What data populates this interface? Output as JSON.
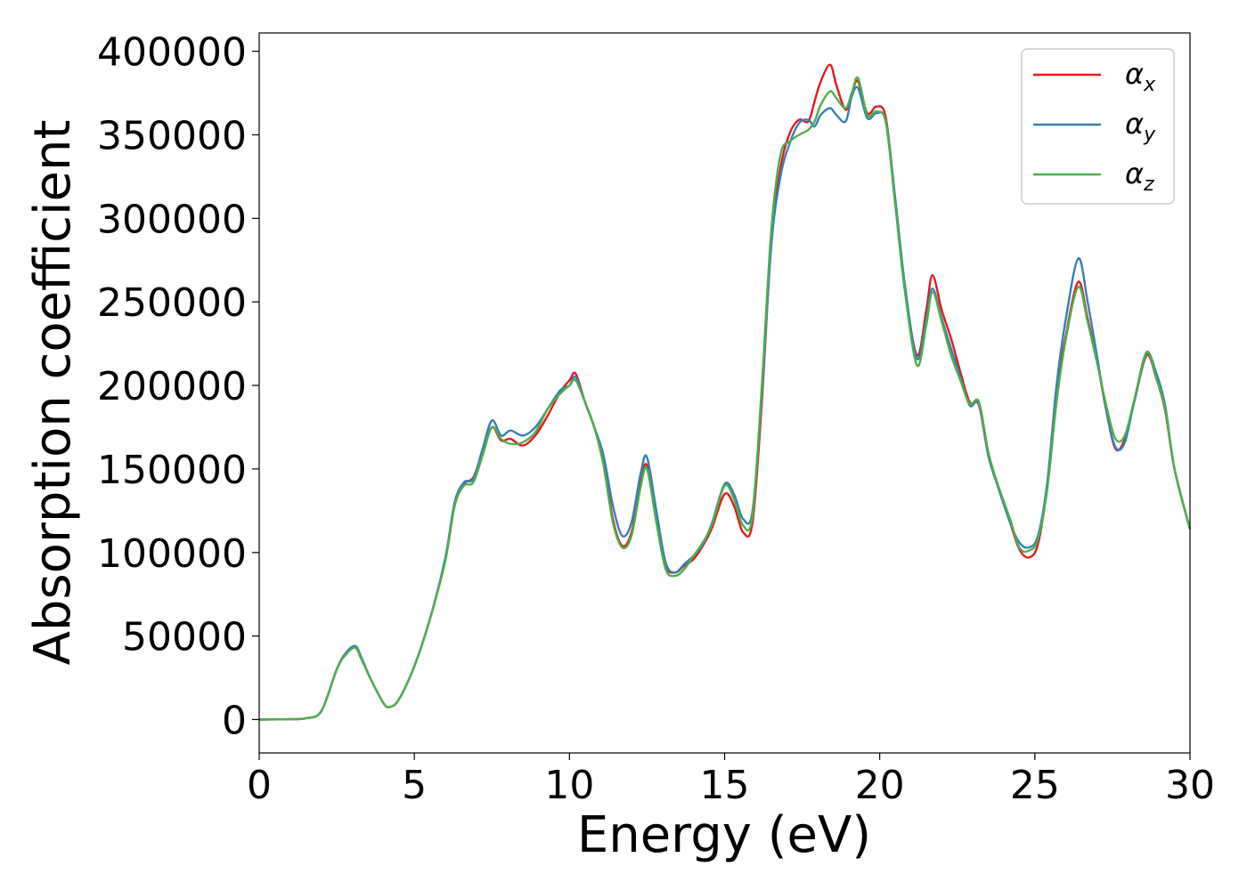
{
  "chart_data": {
    "type": "line",
    "title": "",
    "xlabel": "Energy (eV)",
    "ylabel": "Absorption coefficient",
    "xlim": [
      0,
      30
    ],
    "ylim": [
      -20000,
      411000
    ],
    "xticks": [
      0,
      5,
      10,
      15,
      20,
      25,
      30
    ],
    "xtick_labels": [
      "0",
      "5",
      "10",
      "15",
      "20",
      "25",
      "30"
    ],
    "yticks": [
      0,
      50000,
      100000,
      150000,
      200000,
      250000,
      300000,
      350000,
      400000
    ],
    "ytick_labels": [
      "0",
      "50000",
      "100000",
      "150000",
      "200000",
      "250000",
      "300000",
      "350000",
      "400000"
    ],
    "grid": false,
    "legend_position": "top-right",
    "series": [
      {
        "name": "αx",
        "symbol": "α",
        "subscript": "x",
        "color": "#e41a1c",
        "x": [
          0,
          1,
          1.5,
          2,
          2.5,
          2.8,
          3.1,
          3.3,
          3.6,
          4.0,
          4.2,
          4.5,
          5.0,
          5.5,
          6.0,
          6.3,
          6.6,
          6.9,
          7.2,
          7.5,
          7.8,
          8.1,
          8.5,
          8.9,
          9.3,
          9.7,
          10.0,
          10.2,
          10.5,
          10.8,
          11.1,
          11.4,
          11.7,
          12.0,
          12.3,
          12.5,
          12.8,
          13.1,
          13.4,
          13.7,
          14.0,
          14.3,
          14.6,
          15.0,
          15.3,
          15.6,
          15.9,
          16.2,
          16.5,
          16.8,
          17.1,
          17.4,
          17.7,
          17.9,
          18.1,
          18.4,
          18.6,
          18.9,
          19.1,
          19.3,
          19.6,
          19.9,
          20.2,
          20.5,
          20.8,
          21.2,
          21.5,
          21.7,
          22.0,
          22.3,
          22.6,
          22.9,
          23.2,
          23.5,
          23.8,
          24.2,
          24.5,
          24.8,
          25.1,
          25.4,
          25.7,
          26.0,
          26.4,
          26.7,
          27.0,
          27.3,
          27.6,
          27.9,
          28.2,
          28.6,
          28.9,
          29.2,
          29.5,
          30.0
        ],
        "y": [
          0,
          200,
          800,
          5000,
          30000,
          40000,
          43000,
          36000,
          24000,
          10000,
          7500,
          12000,
          32000,
          60000,
          96000,
          128000,
          141000,
          145000,
          160000,
          175000,
          167000,
          168000,
          164000,
          170000,
          182000,
          196000,
          203000,
          207000,
          190000,
          175000,
          155000,
          120000,
          104000,
          112000,
          142000,
          152000,
          120000,
          92000,
          88000,
          92000,
          96000,
          104000,
          115000,
          135000,
          128000,
          112000,
          118000,
          190000,
          285000,
          330000,
          351000,
          359000,
          358000,
          370000,
          382000,
          392000,
          380000,
          365000,
          375000,
          382000,
          363000,
          367000,
          360000,
          310000,
          260000,
          218000,
          245000,
          266000,
          245000,
          228000,
          208000,
          190000,
          188000,
          158000,
          140000,
          118000,
          102000,
          97000,
          105000,
          140000,
          195000,
          230000,
          262000,
          240000,
          215000,
          185000,
          162000,
          168000,
          190000,
          218000,
          205000,
          185000,
          150000,
          114000
        ]
      },
      {
        "name": "αy",
        "symbol": "α",
        "subscript": "y",
        "color": "#377eb8",
        "x": [
          0,
          1,
          1.5,
          2,
          2.5,
          2.8,
          3.1,
          3.3,
          3.6,
          4.0,
          4.2,
          4.5,
          5.0,
          5.5,
          6.0,
          6.3,
          6.6,
          6.9,
          7.2,
          7.5,
          7.8,
          8.1,
          8.5,
          8.9,
          9.3,
          9.7,
          10.0,
          10.2,
          10.5,
          10.8,
          11.1,
          11.4,
          11.7,
          12.0,
          12.3,
          12.5,
          12.8,
          13.1,
          13.4,
          13.7,
          14.0,
          14.3,
          14.6,
          15.0,
          15.3,
          15.6,
          15.9,
          16.2,
          16.5,
          16.8,
          17.1,
          17.4,
          17.7,
          17.9,
          18.1,
          18.4,
          18.6,
          18.9,
          19.1,
          19.3,
          19.6,
          19.9,
          20.2,
          20.5,
          20.8,
          21.2,
          21.5,
          21.7,
          22.0,
          22.3,
          22.6,
          22.9,
          23.2,
          23.5,
          23.8,
          24.2,
          24.5,
          24.8,
          25.1,
          25.4,
          25.7,
          26.0,
          26.4,
          26.7,
          27.0,
          27.3,
          27.6,
          27.9,
          28.2,
          28.6,
          28.9,
          29.2,
          29.5,
          30.0
        ],
        "y": [
          0,
          200,
          800,
          5000,
          30000,
          40000,
          44000,
          37000,
          24000,
          10000,
          7500,
          12000,
          32000,
          60000,
          97000,
          130000,
          142000,
          144000,
          162000,
          179000,
          170000,
          173000,
          170000,
          175000,
          186000,
          197000,
          200000,
          205000,
          190000,
          175000,
          158000,
          128000,
          110000,
          118000,
          148000,
          157000,
          125000,
          94000,
          88000,
          93000,
          98000,
          105000,
          118000,
          141000,
          135000,
          120000,
          125000,
          195000,
          283000,
          325000,
          345000,
          357000,
          359000,
          355000,
          362000,
          366000,
          362000,
          358000,
          373000,
          378000,
          360000,
          363000,
          358000,
          312000,
          262000,
          216000,
          240000,
          258000,
          240000,
          222000,
          205000,
          188000,
          189000,
          158000,
          140000,
          118000,
          106000,
          103000,
          110000,
          142000,
          200000,
          240000,
          276000,
          250000,
          218000,
          185000,
          163000,
          166000,
          190000,
          219000,
          208000,
          188000,
          150000,
          114000
        ]
      },
      {
        "name": "αz",
        "symbol": "α",
        "subscript": "z",
        "color": "#4daf4a",
        "x": [
          0,
          1,
          1.5,
          2,
          2.5,
          2.8,
          3.1,
          3.3,
          3.6,
          4.0,
          4.2,
          4.5,
          5.0,
          5.5,
          6.0,
          6.3,
          6.6,
          6.9,
          7.2,
          7.5,
          7.8,
          8.1,
          8.5,
          8.9,
          9.3,
          9.7,
          10.0,
          10.2,
          10.5,
          10.8,
          11.1,
          11.4,
          11.7,
          12.0,
          12.3,
          12.5,
          12.8,
          13.1,
          13.4,
          13.7,
          14.0,
          14.3,
          14.6,
          15.0,
          15.3,
          15.6,
          15.9,
          16.2,
          16.5,
          16.8,
          17.1,
          17.4,
          17.7,
          17.9,
          18.1,
          18.4,
          18.6,
          18.9,
          19.1,
          19.3,
          19.6,
          19.9,
          20.2,
          20.5,
          20.8,
          21.2,
          21.5,
          21.7,
          22.0,
          22.3,
          22.6,
          22.9,
          23.2,
          23.5,
          23.8,
          24.2,
          24.5,
          24.8,
          25.1,
          25.4,
          25.7,
          26.0,
          26.4,
          26.7,
          27.0,
          27.3,
          27.6,
          27.9,
          28.2,
          28.6,
          28.9,
          29.2,
          29.5,
          30.0
        ],
        "y": [
          0,
          200,
          800,
          5000,
          30000,
          39000,
          43000,
          36000,
          24000,
          10000,
          7500,
          12000,
          32000,
          60000,
          95000,
          128000,
          140000,
          142000,
          158000,
          175000,
          168000,
          165000,
          166000,
          172000,
          186000,
          195000,
          200000,
          203000,
          190000,
          175000,
          152000,
          118000,
          103000,
          110000,
          140000,
          150000,
          118000,
          90000,
          86000,
          90000,
          98000,
          106000,
          117000,
          140000,
          132000,
          116000,
          122000,
          200000,
          292000,
          338000,
          346000,
          350000,
          353000,
          358000,
          368000,
          376000,
          372000,
          366000,
          375000,
          384000,
          362000,
          364000,
          357000,
          308000,
          258000,
          212000,
          236000,
          256000,
          238000,
          218000,
          203000,
          189000,
          190000,
          160000,
          141000,
          120000,
          103000,
          101000,
          108000,
          138000,
          190000,
          228000,
          259000,
          238000,
          214000,
          188000,
          168000,
          170000,
          191000,
          220000,
          205000,
          186000,
          150000,
          114000
        ]
      }
    ]
  }
}
